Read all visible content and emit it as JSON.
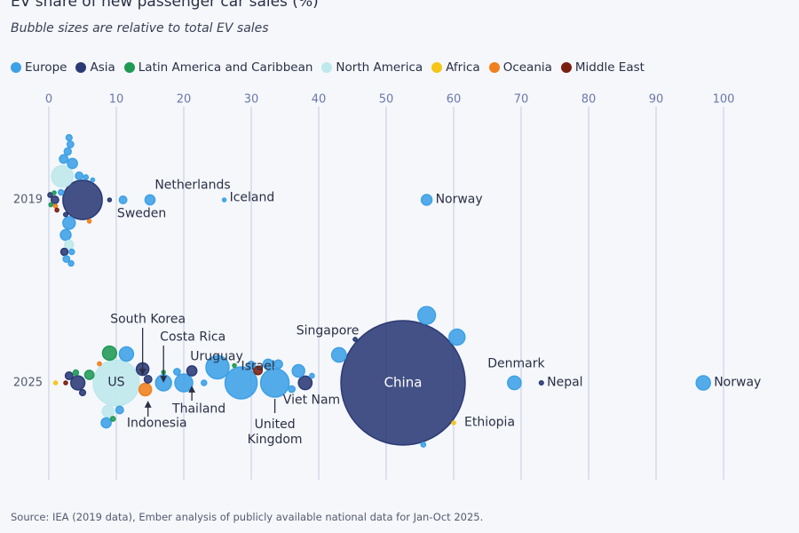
{
  "chart_data": {
    "type": "bubble",
    "title": "EV share of new passenger car sales (%)",
    "subtitle": "Bubble sizes are relative to total EV sales",
    "source": "Source: IEA (2019 data), Ember analysis of publicly available national data for Jan-Oct 2025.",
    "xlim": [
      -5,
      110
    ],
    "xticks": [
      0,
      10,
      20,
      30,
      40,
      50,
      60,
      70,
      80,
      90,
      100
    ],
    "grid": true,
    "legend": "top-left",
    "categories": [
      "2019",
      "2025"
    ],
    "series": [
      {
        "name": "Europe",
        "color": "#3ea1e6",
        "values": [
          56,
          15,
          26,
          11,
          3,
          2.5,
          3.5,
          2.2,
          4.5,
          2.8,
          3.2,
          3,
          1.8,
          5.5,
          2.6,
          3.4,
          3.3,
          6.5,
          97,
          69,
          56,
          60.5,
          43,
          33.5,
          28.5,
          25,
          20,
          17,
          37,
          32.5,
          34,
          30,
          36,
          55.5,
          11.5,
          8.5,
          10.5,
          19,
          23,
          39
        ],
        "sizes": [
          80,
          70,
          5,
          40,
          110,
          80,
          70,
          50,
          40,
          35,
          30,
          25,
          20,
          15,
          30,
          20,
          20,
          10,
          144,
          130,
          220,
          180,
          150,
          575,
          730,
          380,
          225,
          180,
          110,
          70,
          50,
          40,
          30,
          15,
          144,
          70,
          40,
          30,
          20,
          15
        ],
        "years": [
          "2019",
          "2019",
          "2019",
          "2019",
          "2019",
          "2019",
          "2019",
          "2019",
          "2019",
          "2019",
          "2019",
          "2019",
          "2019",
          "2019",
          "2019",
          "2019",
          "2019",
          "2019",
          "2025",
          "2025",
          "2025",
          "2025",
          "2025",
          "2025",
          "2025",
          "2025",
          "2025",
          "2025",
          "2025",
          "2025",
          "2025",
          "2025",
          "2025",
          "2025",
          "2025",
          "2025",
          "2025",
          "2025",
          "2025",
          "2025"
        ],
        "labels": [
          "Norway",
          "Netherlands",
          "Iceland",
          "Sweden",
          null,
          null,
          null,
          null,
          null,
          null,
          null,
          null,
          null,
          null,
          null,
          null,
          null,
          null,
          "Norway",
          "Denmark",
          null,
          null,
          null,
          "United\nKingdom",
          null,
          null,
          null,
          null,
          null,
          null,
          null,
          null,
          null,
          null,
          null,
          null,
          null,
          null,
          null,
          null
        ]
      },
      {
        "name": "Asia",
        "color": "#2b3a75",
        "values": [
          52.5,
          45.4,
          73,
          38,
          21.2,
          13.9,
          14.7,
          4.3,
          3,
          5,
          5,
          0.9,
          2.3,
          0.2,
          9,
          2.5
        ],
        "sizes": [
          11000,
          10,
          12,
          130,
          70,
          110,
          40,
          140,
          40,
          25,
          1100,
          40,
          35,
          15,
          5,
          12
        ],
        "years": [
          "2025",
          "2025",
          "2025",
          "2025",
          "2025",
          "2025",
          "2025",
          "2025",
          "2025",
          "2025",
          "2019",
          "2019",
          "2019",
          "2019",
          "2019",
          "2019"
        ],
        "labels": [
          "China",
          "Singapore",
          "Nepal",
          "Viet Nam",
          "Thailand",
          "South Korea",
          "Indonesia",
          null,
          null,
          null,
          null,
          null,
          null,
          null,
          null,
          null
        ]
      },
      {
        "name": "Latin America and Caribbean",
        "color": "#1f9a55",
        "values": [
          17,
          27.5,
          9,
          6,
          4,
          9.5,
          0.3,
          0.8
        ],
        "sizes": [
          8,
          8,
          140,
          60,
          20,
          15,
          10,
          6
        ],
        "years": [
          "2025",
          "2025",
          "2025",
          "2025",
          "2025",
          "2025",
          "2019",
          "2019"
        ],
        "labels": [
          "Costa Rica",
          "Uruguay",
          null,
          null,
          null,
          null,
          null,
          null
        ]
      },
      {
        "name": "North America",
        "color": "#bde8ec",
        "values": [
          10,
          8.8,
          2,
          3
        ],
        "sizes": [
          1500,
          100,
          330,
          55
        ],
        "years": [
          "2025",
          "2025",
          "2019",
          "2019"
        ],
        "labels": [
          "US",
          null,
          null,
          null
        ]
      },
      {
        "name": "Africa",
        "color": "#f5c518",
        "values": [
          60,
          1
        ],
        "sizes": [
          5,
          3
        ],
        "years": [
          "2025",
          "2025"
        ],
        "labels": [
          "Ethiopia",
          null
        ]
      },
      {
        "name": "Oceania",
        "color": "#f07f1d",
        "values": [
          14.3,
          7.5,
          1,
          6
        ],
        "sizes": [
          110,
          10,
          6,
          5
        ],
        "years": [
          "2025",
          "2025",
          "2019",
          "2019"
        ],
        "labels": [
          null,
          null,
          null,
          null
        ]
      },
      {
        "name": "Middle East",
        "color": "#7a1f10",
        "values": [
          31,
          2.5,
          1.2
        ],
        "sizes": [
          50,
          8,
          6
        ],
        "years": [
          "2025",
          "2025",
          "2019"
        ],
        "labels": [
          "Israel",
          null,
          null
        ]
      }
    ]
  }
}
